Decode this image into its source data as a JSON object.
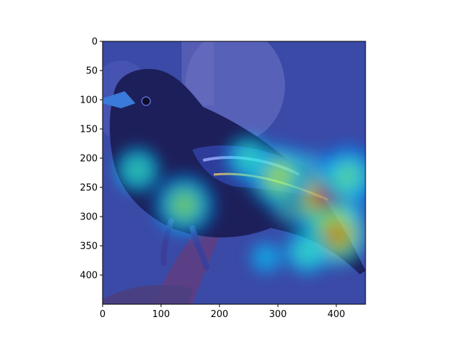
{
  "chart_data": {
    "type": "heatmap",
    "description_kind": "image-with-heatmap-overlay",
    "xlim": [
      0,
      450
    ],
    "ylim": [
      450,
      0
    ],
    "x_ticks": [
      0,
      100,
      200,
      300,
      400
    ],
    "y_ticks": [
      0,
      50,
      100,
      150,
      200,
      250,
      300,
      350,
      400
    ],
    "x_tick_labels": [
      "0",
      "100",
      "200",
      "300",
      "400"
    ],
    "y_tick_labels": [
      "0",
      "50",
      "100",
      "150",
      "200",
      "250",
      "300",
      "350",
      "400"
    ],
    "colormap": "jet",
    "grid": false,
    "hotspots": [
      {
        "x": 345,
        "y": 255,
        "intensity": 1.0
      },
      {
        "x": 385,
        "y": 270,
        "intensity": 0.9
      },
      {
        "x": 400,
        "y": 330,
        "intensity": 0.75
      },
      {
        "x": 300,
        "y": 230,
        "intensity": 0.6
      },
      {
        "x": 140,
        "y": 280,
        "intensity": 0.55
      },
      {
        "x": 60,
        "y": 220,
        "intensity": 0.45
      },
      {
        "x": 250,
        "y": 200,
        "intensity": 0.45
      },
      {
        "x": 350,
        "y": 360,
        "intensity": 0.45
      },
      {
        "x": 280,
        "y": 370,
        "intensity": 0.35
      },
      {
        "x": 420,
        "y": 230,
        "intensity": 0.5
      }
    ]
  },
  "scene": {
    "subject": "bird",
    "background": "#3d4aa0",
    "branch_color": "#6a4a8a",
    "bird_dark": "#1a1a4a"
  }
}
